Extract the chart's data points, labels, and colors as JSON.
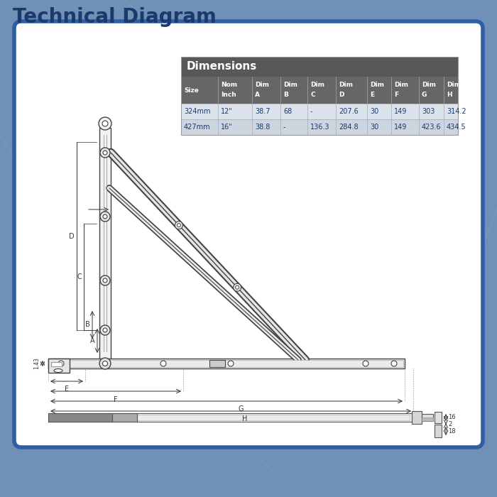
{
  "title": "Technical Diagram",
  "title_color": "#1a3a6b",
  "bg_outer": "#7090b8",
  "bg_inner": "#ffffff",
  "border_color": "#2e5fa3",
  "table_header_bg": "#585858",
  "table_subheader_bg": "#666666",
  "table_row1_bg": "#dde3ec",
  "table_row2_bg": "#cdd5e0",
  "table_text_color": "#1a3a6b",
  "table_header_text": "#ffffff",
  "dim_line_color": "#444444",
  "dimensions_title": "Dimensions",
  "col_headers": [
    "Size",
    "Nom\nInch",
    "Dim\nA",
    "Dim\nB",
    "Dim\nC",
    "Dim\nD",
    "Dim\nE",
    "Dim\nF",
    "Dim\nG",
    "Dim\nH"
  ],
  "row1": [
    "324mm",
    "12\"",
    "38.7",
    "68",
    "-",
    "207.6",
    "30",
    "149",
    "303",
    "314.2"
  ],
  "row2": [
    "427mm",
    "16\"",
    "38.8",
    "-",
    "136.3",
    "284.8",
    "30",
    "149",
    "423.6",
    "434.5"
  ]
}
